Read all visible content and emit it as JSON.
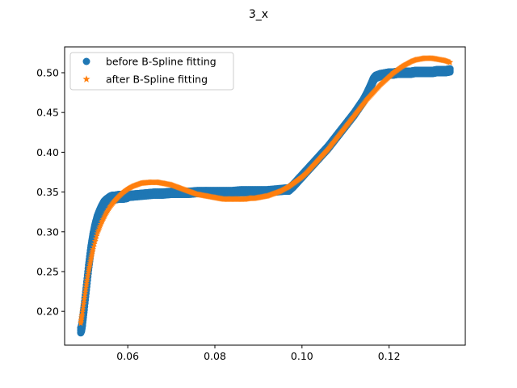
{
  "chart_data": {
    "type": "scatter",
    "title": "3_x",
    "xlabel": "",
    "ylabel": "",
    "xlim": [
      0.0455,
      0.1375
    ],
    "ylim": [
      0.1575,
      0.5325
    ],
    "xticks": [
      0.06,
      0.08,
      0.1,
      0.12
    ],
    "xtick_labels": [
      "0.06",
      "0.08",
      "0.10",
      "0.12"
    ],
    "yticks": [
      0.2,
      0.25,
      0.3,
      0.35,
      0.4,
      0.45,
      0.5
    ],
    "ytick_labels": [
      "0.20",
      "0.25",
      "0.30",
      "0.35",
      "0.40",
      "0.45",
      "0.50"
    ],
    "grid": false,
    "legend": "top-left",
    "series": [
      {
        "name": "before B-Spline fitting",
        "marker": "circle",
        "color": "#1f77b4",
        "x": [
          0.0492,
          0.0494,
          0.0496,
          0.05,
          0.0505,
          0.051,
          0.0515,
          0.052,
          0.0525,
          0.053,
          0.0535,
          0.054,
          0.0545,
          0.055,
          0.0555,
          0.056,
          0.0565,
          0.057,
          0.058,
          0.059,
          0.06,
          0.062,
          0.064,
          0.066,
          0.068,
          0.07,
          0.072,
          0.074,
          0.076,
          0.078,
          0.08,
          0.082,
          0.084,
          0.086,
          0.088,
          0.09,
          0.092,
          0.094,
          0.096,
          0.097,
          0.098,
          0.099,
          0.1,
          0.101,
          0.102,
          0.103,
          0.104,
          0.105,
          0.106,
          0.107,
          0.108,
          0.109,
          0.11,
          0.111,
          0.112,
          0.113,
          0.114,
          0.115,
          0.1155,
          0.116,
          0.1163,
          0.1165,
          0.1168,
          0.117,
          0.1175,
          0.118,
          0.119,
          0.12,
          0.121,
          0.122,
          0.123,
          0.124,
          0.125,
          0.126,
          0.127,
          0.128,
          0.129,
          0.13,
          0.131,
          0.132,
          0.133,
          0.134
        ],
        "y": [
          0.176,
          0.179,
          0.186,
          0.205,
          0.23,
          0.255,
          0.277,
          0.294,
          0.307,
          0.317,
          0.324,
          0.33,
          0.335,
          0.338,
          0.34,
          0.342,
          0.343,
          0.343,
          0.344,
          0.344,
          0.345,
          0.346,
          0.347,
          0.348,
          0.348,
          0.349,
          0.349,
          0.349,
          0.35,
          0.35,
          0.35,
          0.35,
          0.35,
          0.351,
          0.351,
          0.351,
          0.351,
          0.352,
          0.353,
          0.353,
          0.358,
          0.364,
          0.37,
          0.376,
          0.382,
          0.388,
          0.394,
          0.4,
          0.406,
          0.413,
          0.42,
          0.427,
          0.434,
          0.441,
          0.448,
          0.456,
          0.464,
          0.474,
          0.48,
          0.486,
          0.49,
          0.492,
          0.494,
          0.495,
          0.496,
          0.497,
          0.498,
          0.499,
          0.499,
          0.5,
          0.5,
          0.5,
          0.5,
          0.501,
          0.501,
          0.501,
          0.501,
          0.501,
          0.502,
          0.502,
          0.502,
          0.503
        ]
      },
      {
        "name": "after B-Spline fitting",
        "marker": "star",
        "color": "#ff7f0e",
        "x": [
          0.0492,
          0.0495,
          0.05,
          0.0505,
          0.051,
          0.0515,
          0.052,
          0.053,
          0.054,
          0.055,
          0.056,
          0.057,
          0.058,
          0.059,
          0.06,
          0.061,
          0.062,
          0.063,
          0.064,
          0.065,
          0.066,
          0.067,
          0.068,
          0.069,
          0.07,
          0.071,
          0.072,
          0.073,
          0.074,
          0.075,
          0.076,
          0.077,
          0.078,
          0.079,
          0.08,
          0.081,
          0.082,
          0.083,
          0.084,
          0.085,
          0.086,
          0.087,
          0.088,
          0.089,
          0.09,
          0.091,
          0.092,
          0.093,
          0.094,
          0.095,
          0.096,
          0.097,
          0.098,
          0.099,
          0.1,
          0.101,
          0.102,
          0.103,
          0.104,
          0.105,
          0.106,
          0.107,
          0.108,
          0.109,
          0.11,
          0.111,
          0.112,
          0.113,
          0.114,
          0.115,
          0.116,
          0.117,
          0.118,
          0.119,
          0.12,
          0.121,
          0.122,
          0.123,
          0.124,
          0.125,
          0.126,
          0.127,
          0.128,
          0.129,
          0.13,
          0.131,
          0.132,
          0.133,
          0.134
        ],
        "y": [
          0.185,
          0.196,
          0.215,
          0.234,
          0.251,
          0.265,
          0.278,
          0.298,
          0.312,
          0.323,
          0.332,
          0.339,
          0.345,
          0.35,
          0.354,
          0.357,
          0.359,
          0.361,
          0.3615,
          0.362,
          0.362,
          0.362,
          0.361,
          0.36,
          0.359,
          0.357,
          0.355,
          0.353,
          0.351,
          0.349,
          0.347,
          0.346,
          0.345,
          0.344,
          0.343,
          0.342,
          0.341,
          0.341,
          0.341,
          0.341,
          0.341,
          0.341,
          0.342,
          0.342,
          0.343,
          0.344,
          0.345,
          0.347,
          0.349,
          0.351,
          0.354,
          0.357,
          0.361,
          0.365,
          0.369,
          0.374,
          0.38,
          0.386,
          0.392,
          0.398,
          0.404,
          0.411,
          0.418,
          0.425,
          0.432,
          0.439,
          0.446,
          0.453,
          0.46,
          0.467,
          0.473,
          0.479,
          0.485,
          0.49,
          0.495,
          0.5,
          0.504,
          0.508,
          0.511,
          0.514,
          0.516,
          0.517,
          0.518,
          0.518,
          0.518,
          0.517,
          0.516,
          0.515,
          0.513
        ]
      }
    ]
  }
}
